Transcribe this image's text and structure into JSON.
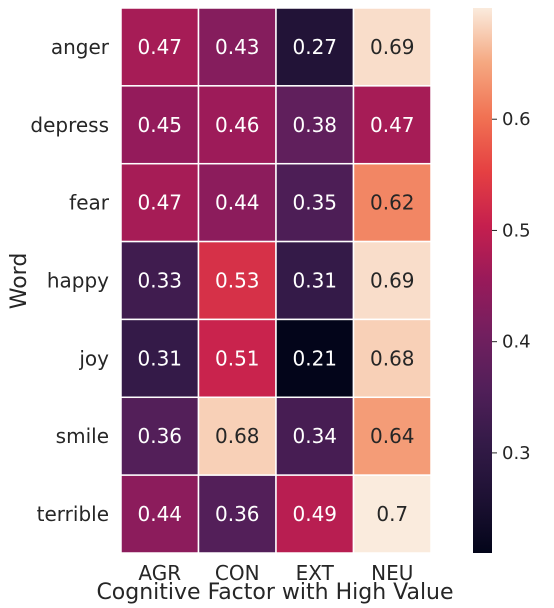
{
  "chart_data": {
    "type": "heatmap",
    "xlabel": "Cognitive Factor with High Value",
    "ylabel": "Word",
    "columns": [
      "AGR",
      "CON",
      "EXT",
      "NEU"
    ],
    "rows": [
      "anger",
      "depress",
      "fear",
      "happy",
      "joy",
      "smile",
      "terrible"
    ],
    "values": [
      [
        0.47,
        0.43,
        0.27,
        0.69
      ],
      [
        0.45,
        0.46,
        0.38,
        0.47
      ],
      [
        0.47,
        0.44,
        0.35,
        0.62
      ],
      [
        0.33,
        0.53,
        0.31,
        0.69
      ],
      [
        0.31,
        0.51,
        0.21,
        0.68
      ],
      [
        0.36,
        0.68,
        0.34,
        0.64
      ],
      [
        0.44,
        0.36,
        0.49,
        0.7
      ]
    ],
    "labels": [
      [
        "0.47",
        "0.43",
        "0.27",
        "0.69"
      ],
      [
        "0.45",
        "0.46",
        "0.38",
        "0.47"
      ],
      [
        "0.47",
        "0.44",
        "0.35",
        "0.62"
      ],
      [
        "0.33",
        "0.53",
        "0.31",
        "0.69"
      ],
      [
        "0.31",
        "0.51",
        "0.21",
        "0.68"
      ],
      [
        "0.36",
        "0.68",
        "0.34",
        "0.64"
      ],
      [
        "0.44",
        "0.36",
        "0.49",
        "0.7"
      ]
    ],
    "colorbar": {
      "range": [
        0.21,
        0.7
      ],
      "ticks": [
        0.3,
        0.4,
        0.5,
        0.6
      ],
      "tick_labels": [
        "0.3",
        "0.4",
        "0.5",
        "0.6"
      ],
      "colormap": "rocket"
    },
    "grid": false
  }
}
